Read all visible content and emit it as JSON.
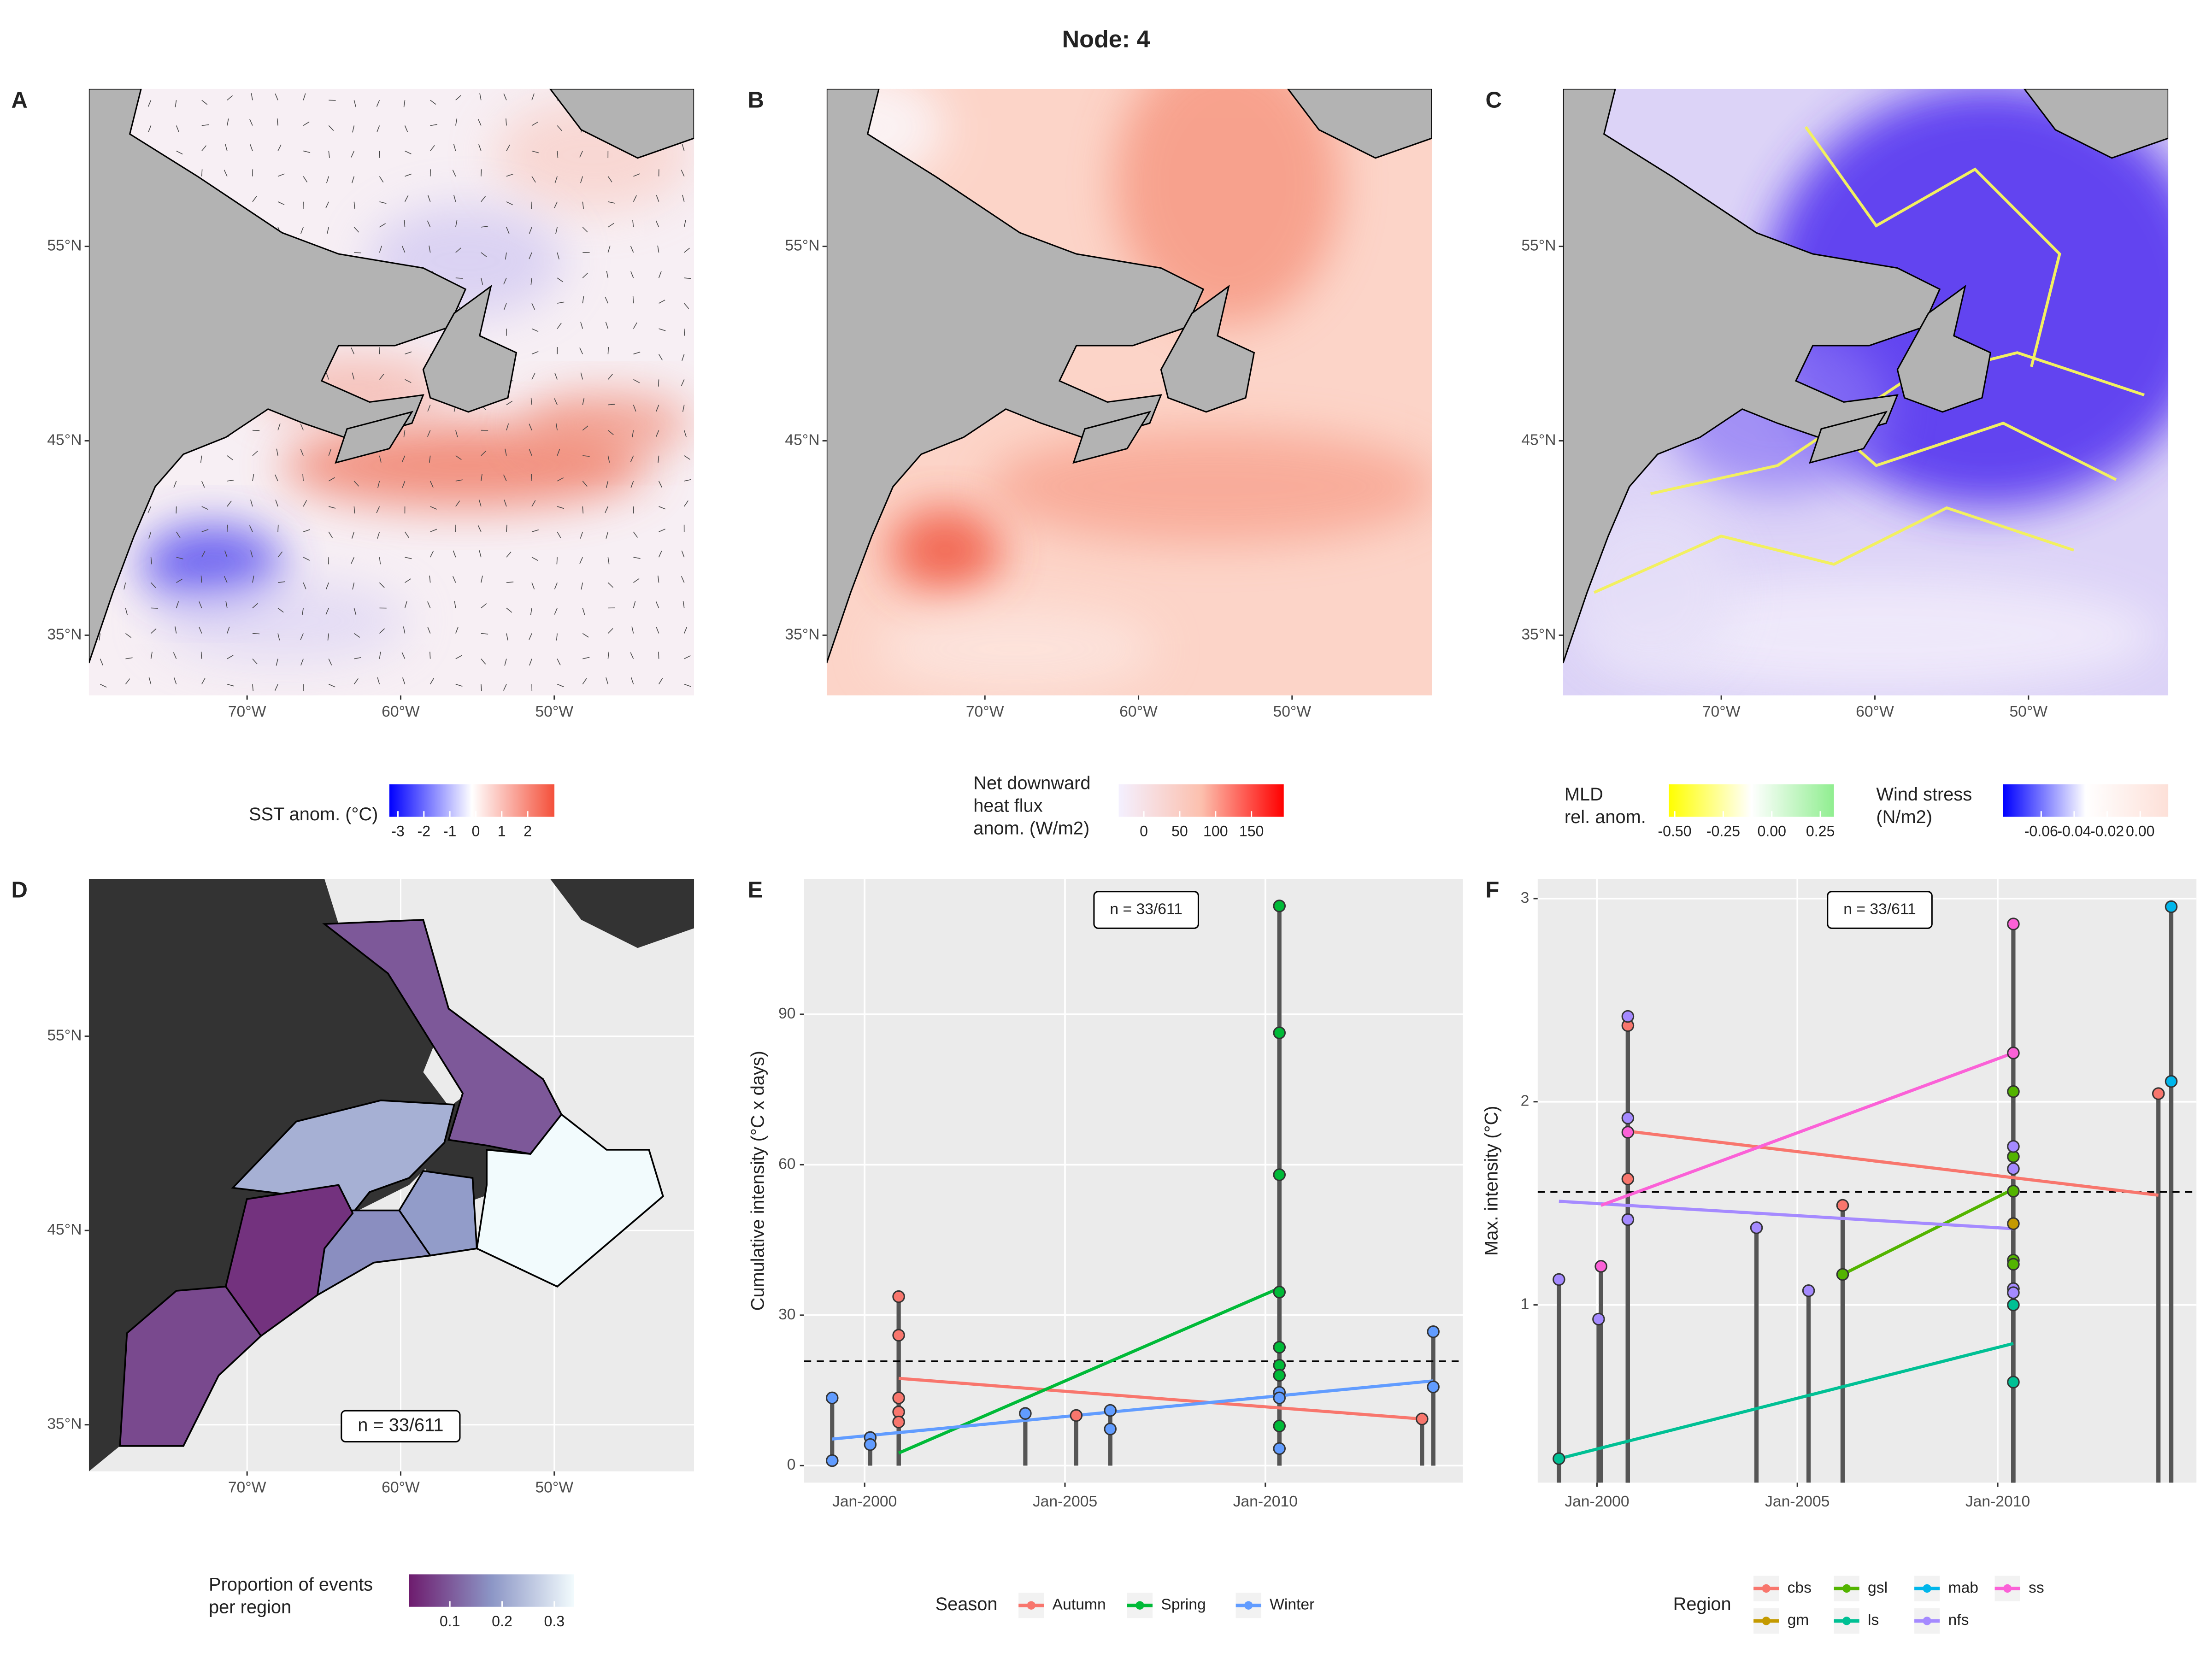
{
  "title": "Node: 4",
  "chart_data": [
    {
      "type": "map",
      "label": "A",
      "xlim": [
        -80.3,
        -40.9
      ],
      "ylim": [
        31.9,
        63.1
      ],
      "xticks": [
        {
          "value": -70,
          "label": "70°W"
        },
        {
          "value": -60,
          "label": "60°W"
        },
        {
          "value": -50,
          "label": "50°W"
        }
      ],
      "yticks": [
        {
          "value": 35,
          "label": "35°N"
        },
        {
          "value": 45,
          "label": "45°N"
        },
        {
          "value": 55,
          "label": "55°N"
        }
      ],
      "colorbars": [
        {
          "title_lines": [
            "SST anom. (°C)"
          ],
          "lim": [
            -3.33,
            3.03
          ],
          "colors": [
            "#0000ff",
            "#ffffff",
            "#f4503a"
          ],
          "ticks": [
            -3,
            -2,
            -1,
            0,
            1,
            2
          ]
        }
      ]
    },
    {
      "type": "map",
      "label": "B",
      "xlim": [
        -80.3,
        -40.9
      ],
      "ylim": [
        31.9,
        63.1
      ],
      "xticks": [
        {
          "value": -70,
          "label": "70°W"
        },
        {
          "value": -60,
          "label": "60°W"
        },
        {
          "value": -50,
          "label": "50°W"
        }
      ],
      "yticks": [
        {
          "value": 35,
          "label": "35°N"
        },
        {
          "value": 45,
          "label": "45°N"
        },
        {
          "value": 55,
          "label": "55°N"
        }
      ],
      "colorbars": [
        {
          "title_lines": [
            "Net downward",
            "heat flux",
            "anom. (W/m2)"
          ],
          "lim": [
            -35,
            195
          ],
          "colors": [
            "#f4f0ff",
            "#fcc0ae",
            "#ff0000"
          ],
          "ticks": [
            0,
            50,
            100,
            150
          ]
        }
      ]
    },
    {
      "type": "map",
      "label": "C",
      "xlim": [
        -80.3,
        -40.9
      ],
      "ylim": [
        31.9,
        63.1
      ],
      "xticks": [
        {
          "value": -70,
          "label": "70°W"
        },
        {
          "value": -60,
          "label": "60°W"
        },
        {
          "value": -50,
          "label": "50°W"
        }
      ],
      "yticks": [
        {
          "value": 35,
          "label": "35°N"
        },
        {
          "value": 45,
          "label": "45°N"
        },
        {
          "value": 55,
          "label": "55°N"
        }
      ],
      "colorbars": [
        {
          "title_lines": [
            "MLD",
            "rel. anom."
          ],
          "lim": [
            -0.53,
            0.32
          ],
          "colors": [
            "#ffff00",
            "#ffffff",
            "#90ee90"
          ],
          "ticks": [
            {
              "value": -0.5,
              "label": "-0.50"
            },
            {
              "value": -0.25,
              "label": "-0.25"
            },
            {
              "value": 0,
              "label": "0.00"
            },
            {
              "value": 0.25,
              "label": "0.25"
            }
          ]
        },
        {
          "title_lines": [
            "Wind stress",
            "(N/m2)"
          ],
          "lim": [
            -0.083,
            0.017
          ],
          "colors": [
            "#0000ff",
            "#ffffff",
            "#fde0d8"
          ],
          "ticks": [
            {
              "value": -0.06,
              "label": "-0.06"
            },
            {
              "value": -0.04,
              "label": "-0.04"
            },
            {
              "value": -0.02,
              "label": "-0.02"
            },
            {
              "value": 0,
              "label": "0.00"
            }
          ]
        }
      ]
    },
    {
      "type": "region_map",
      "label": "D",
      "annotation": "n = 33/611",
      "xlim": [
        -80.3,
        -40.9
      ],
      "ylim": [
        32.6,
        63.1
      ],
      "xticks": [
        {
          "value": -70,
          "label": "70°W"
        },
        {
          "value": -60,
          "label": "60°W"
        },
        {
          "value": -50,
          "label": "50°W"
        }
      ],
      "yticks": [
        {
          "value": 35,
          "label": "35°N"
        },
        {
          "value": 45,
          "label": "45°N"
        },
        {
          "value": 55,
          "label": "55°N"
        }
      ],
      "values": [
        0.1,
        0.22,
        0.34,
        0.19,
        0.17,
        0.05,
        0.08
      ],
      "colorbars": [
        {
          "title_lines": [
            "Proportion of events",
            "per region"
          ],
          "lim": [
            0.022,
            0.338
          ],
          "colors": [
            "#6e1c6e",
            "#8c96c6",
            "#f2fbfd"
          ],
          "ticks": [
            0.1,
            0.2,
            0.3
          ]
        }
      ]
    },
    {
      "type": "lollipop",
      "label": "E",
      "annotation": "n = 33/611",
      "ylabel": "Cumulative intensity (°C x days)",
      "xlim": [
        1998.49,
        2014.93
      ],
      "ylim": [
        -3.4,
        117
      ],
      "xticks": [
        {
          "value": 2000,
          "label": "Jan-2000"
        },
        {
          "value": 2005,
          "label": "Jan-2005"
        },
        {
          "value": 2010,
          "label": "Jan-2010"
        }
      ],
      "yticks": [
        0,
        30,
        60,
        90
      ],
      "hline": 20.8,
      "legend_title": "Season",
      "series": [
        {
          "name": "Autumn",
          "color": "#F8766D",
          "x": [
            2000.85,
            2000.85,
            2000.85,
            2000.85,
            2000.85,
            2005.28,
            2013.91
          ],
          "values": [
            33.7,
            26,
            13.5,
            10.7,
            8.7,
            10,
            9.3
          ],
          "trend_x": [
            2000.85,
            2013.91
          ],
          "trend_values": [
            17.4,
            9.3
          ]
        },
        {
          "name": "Spring",
          "color": "#00BA38",
          "x": [
            2010.35,
            2010.35,
            2010.35,
            2010.35,
            2010.35,
            2010.35,
            2010.35,
            2010.35
          ],
          "values": [
            111.6,
            86.3,
            58,
            34.6,
            23.6,
            20,
            18,
            7.9
          ],
          "trend_x": [
            2000.85,
            2010.35
          ],
          "trend_values": [
            2.5,
            35.4
          ]
        },
        {
          "name": "Winter",
          "color": "#619CFF",
          "x": [
            1999.19,
            1999.19,
            2000.14,
            2000.14,
            2004.01,
            2006.13,
            2006.13,
            2010.35,
            2010.35,
            2010.35,
            2014.19,
            2014.19
          ],
          "values": [
            13.5,
            1,
            5.6,
            4.2,
            10.4,
            11,
            7.3,
            14.6,
            13.5,
            3.4,
            26.7,
            15.7
          ],
          "trend_x": [
            1999.19,
            2014.19
          ],
          "trend_values": [
            5.3,
            16.9
          ]
        }
      ]
    },
    {
      "type": "lollipop",
      "label": "F",
      "annotation": "n = 33/611",
      "ylabel": "Max. intensity (°C)",
      "xlim": [
        1998.52,
        2014.96
      ],
      "ylim": [
        0.125,
        3.097
      ],
      "xticks": [
        {
          "value": 2000,
          "label": "Jan-2000"
        },
        {
          "value": 2005,
          "label": "Jan-2005"
        },
        {
          "value": 2010,
          "label": "Jan-2010"
        }
      ],
      "yticks": [
        1,
        2,
        3
      ],
      "hline": 1.556,
      "legend_title": "Region",
      "series": [
        {
          "name": "cbs",
          "color": "#F8766D",
          "x": [
            2000.77,
            2000.77,
            2006.13,
            2014.01
          ],
          "values": [
            2.375,
            1.62,
            1.49,
            2.04
          ],
          "trend_x": [
            2000.77,
            2014.01
          ],
          "trend_values": [
            1.855,
            1.54
          ]
        },
        {
          "name": "gm",
          "color": "#C49A00",
          "x": [
            2010.39
          ],
          "values": [
            1.4
          ]
        },
        {
          "name": "gsl",
          "color": "#53B400",
          "x": [
            2006.13,
            2010.39,
            2010.39,
            2010.39,
            2010.39,
            2010.39
          ],
          "values": [
            1.15,
            2.05,
            1.73,
            1.56,
            1.22,
            1.2
          ],
          "trend_x": [
            2006.13,
            2010.39
          ],
          "trend_values": [
            1.15,
            1.57
          ]
        },
        {
          "name": "ls",
          "color": "#00C094",
          "x": [
            1999.05,
            2010.39,
            2010.39
          ],
          "values": [
            0.243,
            1.0,
            0.62
          ],
          "trend_x": [
            1999.05,
            2010.39
          ],
          "trend_values": [
            0.243,
            0.81
          ]
        },
        {
          "name": "mab",
          "color": "#00B6EB",
          "x": [
            2014.33,
            2014.33
          ],
          "values": [
            2.96,
            2.1
          ]
        },
        {
          "name": "nfs",
          "color": "#A58AFF",
          "x": [
            1999.05,
            2000.04,
            2000.77,
            2000.77,
            2000.77,
            2003.98,
            2005.28,
            2010.39,
            2010.39,
            2010.39,
            2010.39
          ],
          "values": [
            1.125,
            0.93,
            2.42,
            1.92,
            1.42,
            1.38,
            1.07,
            1.78,
            1.67,
            1.08,
            1.06
          ],
          "trend_x": [
            1999.05,
            2010.39
          ],
          "trend_values": [
            1.51,
            1.375
          ]
        },
        {
          "name": "ss",
          "color": "#FB61D7",
          "x": [
            2000.1,
            2000.77,
            2010.39,
            2010.39
          ],
          "values": [
            1.19,
            1.85,
            2.875,
            2.24
          ],
          "trend_x": [
            2000.1,
            2010.39
          ],
          "trend_values": [
            1.49,
            2.24
          ]
        }
      ]
    }
  ]
}
